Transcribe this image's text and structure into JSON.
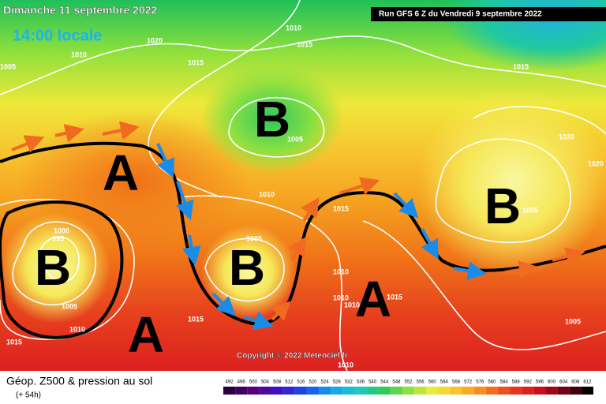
{
  "header": {
    "date": "Dimanche 11 septembre 2022",
    "time": "14:00 locale",
    "run": "Run GFS 6 Z du Vendredi 9 septembre 2022"
  },
  "map": {
    "systems": [
      "B",
      "A",
      "B",
      "A",
      "B",
      "A",
      "B"
    ],
    "isobar_labels": [
      "1010",
      "1015",
      "1020",
      "1010",
      "1005",
      "1015",
      "1015",
      "1005",
      "1010",
      "1015",
      "1020",
      "1020",
      "1005",
      "1000",
      "995",
      "1005",
      "1010",
      "1010",
      "1010",
      "1015",
      "1005",
      "1015",
      "1010",
      "1015",
      "1010",
      "1005"
    ],
    "copyright": "Copyright © 2022 Meteociel.fr"
  },
  "footer": {
    "title": "Géop. Z500 & pression au sol",
    "lead": "(+ 54h)",
    "scale": [
      492,
      496,
      500,
      504,
      508,
      512,
      516,
      520,
      524,
      528,
      532,
      536,
      540,
      544,
      548,
      552,
      556,
      560,
      564,
      568,
      572,
      576,
      580,
      584,
      588,
      592,
      596,
      600,
      604,
      608,
      612
    ]
  }
}
